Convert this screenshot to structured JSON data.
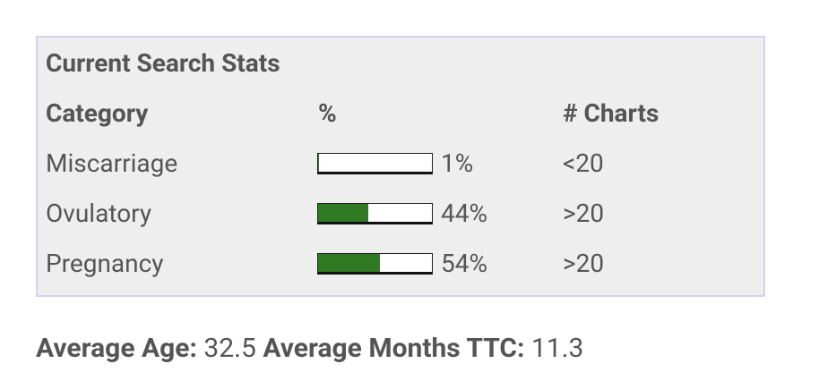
{
  "header": {
    "title": "Current Search Stats"
  },
  "table": {
    "columns": [
      "Category",
      "%",
      "# Charts"
    ],
    "rows": [
      {
        "category": "Miscarriage",
        "percent": 1,
        "percent_label": "1%",
        "charts": "<20"
      },
      {
        "category": "Ovulatory",
        "percent": 44,
        "percent_label": "44%",
        "charts": ">20"
      },
      {
        "category": "Pregnancy",
        "percent": 54,
        "percent_label": "54%",
        "charts": ">20"
      }
    ]
  },
  "footer": {
    "age_label": "Average Age:",
    "age": 32.5,
    "months_label": "Average Months TTC:",
    "months": 11.3
  }
}
